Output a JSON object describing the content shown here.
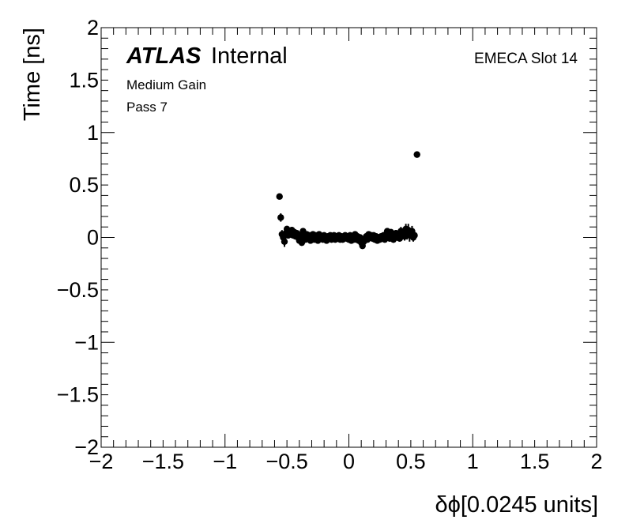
{
  "chart_data": {
    "type": "scatter",
    "title": "",
    "xlabel": "δϕ[0.0245 units]",
    "ylabel": "Time [ns]",
    "xlim": [
      -2,
      2
    ],
    "ylim": [
      -2,
      2
    ],
    "x_ticks": [
      "−2",
      "−1.5",
      "−1",
      "−0.5",
      "0",
      "0.5",
      "1",
      "1.5",
      "2"
    ],
    "y_ticks": [
      "−2",
      "−1.5",
      "−1",
      "−0.5",
      "0",
      "0.5",
      "1",
      "1.5",
      "2"
    ],
    "grid": false,
    "marker": "filled-circle",
    "color": "#000000",
    "points": [
      {
        "x": -0.56,
        "y": 0.39,
        "err": 0.02
      },
      {
        "x": -0.55,
        "y": 0.19,
        "err": 0.04
      },
      {
        "x": -0.54,
        "y": 0.03,
        "err": 0.04
      },
      {
        "x": -0.53,
        "y": 0.0,
        "err": 0.03
      },
      {
        "x": -0.52,
        "y": -0.04,
        "err": 0.05
      },
      {
        "x": -0.51,
        "y": 0.04,
        "err": 0.03
      },
      {
        "x": -0.5,
        "y": 0.08,
        "err": 0.03
      },
      {
        "x": -0.49,
        "y": 0.02,
        "err": 0.03
      },
      {
        "x": -0.48,
        "y": 0.06,
        "err": 0.03
      },
      {
        "x": -0.47,
        "y": 0.03,
        "err": 0.03
      },
      {
        "x": -0.46,
        "y": 0.07,
        "err": 0.03
      },
      {
        "x": -0.45,
        "y": 0.02,
        "err": 0.02
      },
      {
        "x": -0.44,
        "y": 0.05,
        "err": 0.02
      },
      {
        "x": -0.43,
        "y": 0.01,
        "err": 0.02
      },
      {
        "x": -0.42,
        "y": 0.04,
        "err": 0.02
      },
      {
        "x": -0.41,
        "y": 0.0,
        "err": 0.02
      },
      {
        "x": -0.4,
        "y": -0.03,
        "err": 0.02
      },
      {
        "x": -0.39,
        "y": 0.02,
        "err": 0.02
      },
      {
        "x": -0.38,
        "y": -0.05,
        "err": 0.02
      },
      {
        "x": -0.37,
        "y": 0.06,
        "err": 0.02
      },
      {
        "x": -0.36,
        "y": 0.0,
        "err": 0.02
      },
      {
        "x": -0.35,
        "y": -0.02,
        "err": 0.02
      },
      {
        "x": -0.34,
        "y": 0.03,
        "err": 0.02
      },
      {
        "x": -0.33,
        "y": -0.01,
        "err": 0.02
      },
      {
        "x": -0.32,
        "y": 0.02,
        "err": 0.02
      },
      {
        "x": -0.31,
        "y": -0.03,
        "err": 0.02
      },
      {
        "x": -0.3,
        "y": 0.01,
        "err": 0.02
      },
      {
        "x": -0.29,
        "y": 0.03,
        "err": 0.02
      },
      {
        "x": -0.28,
        "y": -0.02,
        "err": 0.02
      },
      {
        "x": -0.27,
        "y": 0.02,
        "err": 0.02
      },
      {
        "x": -0.26,
        "y": 0.0,
        "err": 0.02
      },
      {
        "x": -0.25,
        "y": -0.03,
        "err": 0.02
      },
      {
        "x": -0.24,
        "y": 0.03,
        "err": 0.02
      },
      {
        "x": -0.23,
        "y": -0.01,
        "err": 0.02
      },
      {
        "x": -0.22,
        "y": 0.01,
        "err": 0.02
      },
      {
        "x": -0.21,
        "y": -0.02,
        "err": 0.02
      },
      {
        "x": -0.2,
        "y": 0.02,
        "err": 0.02
      },
      {
        "x": -0.19,
        "y": 0.0,
        "err": 0.02
      },
      {
        "x": -0.18,
        "y": -0.03,
        "err": 0.02
      },
      {
        "x": -0.17,
        "y": 0.01,
        "err": 0.02
      },
      {
        "x": -0.16,
        "y": -0.01,
        "err": 0.02
      },
      {
        "x": -0.15,
        "y": 0.02,
        "err": 0.02
      },
      {
        "x": -0.14,
        "y": -0.02,
        "err": 0.02
      },
      {
        "x": -0.13,
        "y": 0.0,
        "err": 0.02
      },
      {
        "x": -0.12,
        "y": 0.02,
        "err": 0.02
      },
      {
        "x": -0.11,
        "y": -0.02,
        "err": 0.02
      },
      {
        "x": -0.1,
        "y": 0.01,
        "err": 0.02
      },
      {
        "x": -0.09,
        "y": -0.01,
        "err": 0.02
      },
      {
        "x": -0.08,
        "y": 0.02,
        "err": 0.02
      },
      {
        "x": -0.07,
        "y": -0.02,
        "err": 0.02
      },
      {
        "x": -0.06,
        "y": 0.01,
        "err": 0.02
      },
      {
        "x": -0.05,
        "y": -0.02,
        "err": 0.02
      },
      {
        "x": -0.04,
        "y": 0.0,
        "err": 0.02
      },
      {
        "x": -0.03,
        "y": 0.02,
        "err": 0.02
      },
      {
        "x": -0.02,
        "y": -0.01,
        "err": 0.02
      },
      {
        "x": -0.01,
        "y": 0.01,
        "err": 0.02
      },
      {
        "x": 0.0,
        "y": -0.02,
        "err": 0.02
      },
      {
        "x": 0.01,
        "y": 0.02,
        "err": 0.02
      },
      {
        "x": 0.02,
        "y": -0.03,
        "err": 0.02
      },
      {
        "x": 0.03,
        "y": 0.0,
        "err": 0.02
      },
      {
        "x": 0.04,
        "y": -0.02,
        "err": 0.02
      },
      {
        "x": 0.05,
        "y": 0.03,
        "err": 0.02
      },
      {
        "x": 0.06,
        "y": -0.02,
        "err": 0.02
      },
      {
        "x": 0.07,
        "y": 0.01,
        "err": 0.02
      },
      {
        "x": 0.08,
        "y": -0.03,
        "err": 0.02
      },
      {
        "x": 0.09,
        "y": 0.0,
        "err": 0.02
      },
      {
        "x": 0.1,
        "y": -0.05,
        "err": 0.02
      },
      {
        "x": 0.11,
        "y": -0.08,
        "err": 0.02
      },
      {
        "x": 0.12,
        "y": -0.04,
        "err": 0.02
      },
      {
        "x": 0.13,
        "y": -0.01,
        "err": 0.02
      },
      {
        "x": 0.14,
        "y": 0.01,
        "err": 0.02
      },
      {
        "x": 0.15,
        "y": -0.02,
        "err": 0.02
      },
      {
        "x": 0.16,
        "y": 0.03,
        "err": 0.02
      },
      {
        "x": 0.17,
        "y": 0.0,
        "err": 0.02
      },
      {
        "x": 0.18,
        "y": 0.02,
        "err": 0.02
      },
      {
        "x": 0.19,
        "y": -0.01,
        "err": 0.02
      },
      {
        "x": 0.2,
        "y": 0.02,
        "err": 0.02
      },
      {
        "x": 0.21,
        "y": -0.02,
        "err": 0.02
      },
      {
        "x": 0.22,
        "y": 0.01,
        "err": 0.02
      },
      {
        "x": 0.23,
        "y": -0.03,
        "err": 0.02
      },
      {
        "x": 0.24,
        "y": 0.0,
        "err": 0.02
      },
      {
        "x": 0.25,
        "y": -0.02,
        "err": 0.02
      },
      {
        "x": 0.26,
        "y": 0.01,
        "err": 0.02
      },
      {
        "x": 0.27,
        "y": -0.01,
        "err": 0.02
      },
      {
        "x": 0.28,
        "y": 0.02,
        "err": 0.02
      },
      {
        "x": 0.29,
        "y": -0.02,
        "err": 0.02
      },
      {
        "x": 0.3,
        "y": 0.03,
        "err": 0.02
      },
      {
        "x": 0.31,
        "y": 0.06,
        "err": 0.03
      },
      {
        "x": 0.32,
        "y": 0.02,
        "err": 0.03
      },
      {
        "x": 0.33,
        "y": -0.01,
        "err": 0.03
      },
      {
        "x": 0.34,
        "y": 0.05,
        "err": 0.03
      },
      {
        "x": 0.35,
        "y": 0.03,
        "err": 0.03
      },
      {
        "x": 0.36,
        "y": -0.02,
        "err": 0.03
      },
      {
        "x": 0.37,
        "y": 0.01,
        "err": 0.03
      },
      {
        "x": 0.38,
        "y": 0.04,
        "err": 0.03
      },
      {
        "x": 0.39,
        "y": 0.0,
        "err": 0.03
      },
      {
        "x": 0.4,
        "y": 0.03,
        "err": 0.03
      },
      {
        "x": 0.41,
        "y": -0.01,
        "err": 0.03
      },
      {
        "x": 0.42,
        "y": 0.06,
        "err": 0.04
      },
      {
        "x": 0.43,
        "y": 0.02,
        "err": 0.04
      },
      {
        "x": 0.44,
        "y": 0.05,
        "err": 0.04
      },
      {
        "x": 0.45,
        "y": 0.01,
        "err": 0.04
      },
      {
        "x": 0.46,
        "y": 0.08,
        "err": 0.05
      },
      {
        "x": 0.47,
        "y": 0.03,
        "err": 0.05
      },
      {
        "x": 0.48,
        "y": 0.07,
        "err": 0.06
      },
      {
        "x": 0.49,
        "y": 0.02,
        "err": 0.06
      },
      {
        "x": 0.5,
        "y": 0.04,
        "err": 0.05
      },
      {
        "x": 0.51,
        "y": 0.06,
        "err": 0.05
      },
      {
        "x": 0.52,
        "y": 0.0,
        "err": 0.04
      },
      {
        "x": 0.53,
        "y": 0.02,
        "err": 0.04
      },
      {
        "x": 0.55,
        "y": 0.79,
        "err": 0.01
      }
    ]
  },
  "labels": {
    "atlas": "ATLAS",
    "internal": "Internal",
    "gain": "Medium Gain",
    "pass": "Pass 7",
    "slot": "EMECA Slot 14"
  }
}
